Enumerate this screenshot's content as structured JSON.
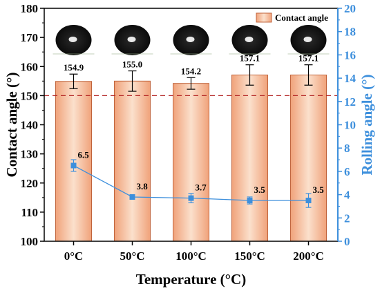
{
  "chart_data": {
    "type": "bar",
    "categories": [
      "0°C",
      "50°C",
      "100°C",
      "150°C",
      "200°C"
    ],
    "series": [
      {
        "name": "Contact angle",
        "kind": "bar",
        "axis": "left",
        "values": [
          154.9,
          155.0,
          154.2,
          157.1,
          157.1
        ],
        "errors": [
          2.5,
          3.5,
          2.0,
          3.5,
          3.5
        ],
        "labels": [
          "154.9",
          "155.0",
          "154.2",
          "157.1",
          "157.1"
        ]
      },
      {
        "kind": "line",
        "axis": "right",
        "values": [
          6.5,
          3.8,
          3.7,
          3.5,
          3.5
        ],
        "errors": [
          0.5,
          0.2,
          0.4,
          0.3,
          0.6
        ],
        "labels": [
          "6.5",
          "3.8",
          "3.7",
          "3.5",
          "3.5"
        ]
      }
    ],
    "xlabel": "Temperature (°C)",
    "ylabel_left": "Contact angle (°)",
    "ylabel_right": "Rolling angle (°)",
    "ylim_left": [
      100,
      180
    ],
    "ylim_right": [
      0,
      20
    ],
    "yticks_left": [
      100,
      110,
      120,
      130,
      140,
      150,
      160,
      170,
      180
    ],
    "yticks_right": [
      0,
      2,
      4,
      6,
      8,
      10,
      12,
      14,
      16,
      18,
      20
    ],
    "reference_line": {
      "value": 150,
      "axis": "left",
      "style": "dashed"
    },
    "grid": false,
    "legend_position": "top-right",
    "colors": {
      "bar_fill_light": "#fbe0cc",
      "bar_fill_dark": "#f0a27a",
      "bar_stroke": "#c0643c",
      "line": "#3d8fdc",
      "right_axis": "#3d8fdc",
      "reference_line": "#b22222",
      "droplet": "#111111"
    }
  }
}
